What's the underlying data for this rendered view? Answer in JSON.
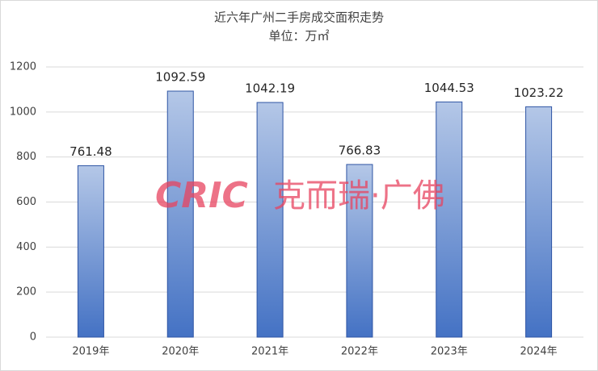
{
  "chart_data": {
    "type": "bar",
    "title": "近六年广州二手房成交面积走势",
    "subtitle": "单位：万㎡",
    "watermark_logo": "CRIC",
    "watermark_text": "克而瑞·广佛",
    "categories": [
      "2019年",
      "2020年",
      "2021年",
      "2022年",
      "2023年",
      "2024年"
    ],
    "values": [
      761.48,
      1092.59,
      1042.19,
      766.83,
      1044.53,
      1023.22
    ],
    "color": "#4472c4",
    "ylim": [
      0,
      1200
    ],
    "yticks": [
      0,
      200,
      400,
      600,
      800,
      1000,
      1200
    ],
    "grid": true
  }
}
